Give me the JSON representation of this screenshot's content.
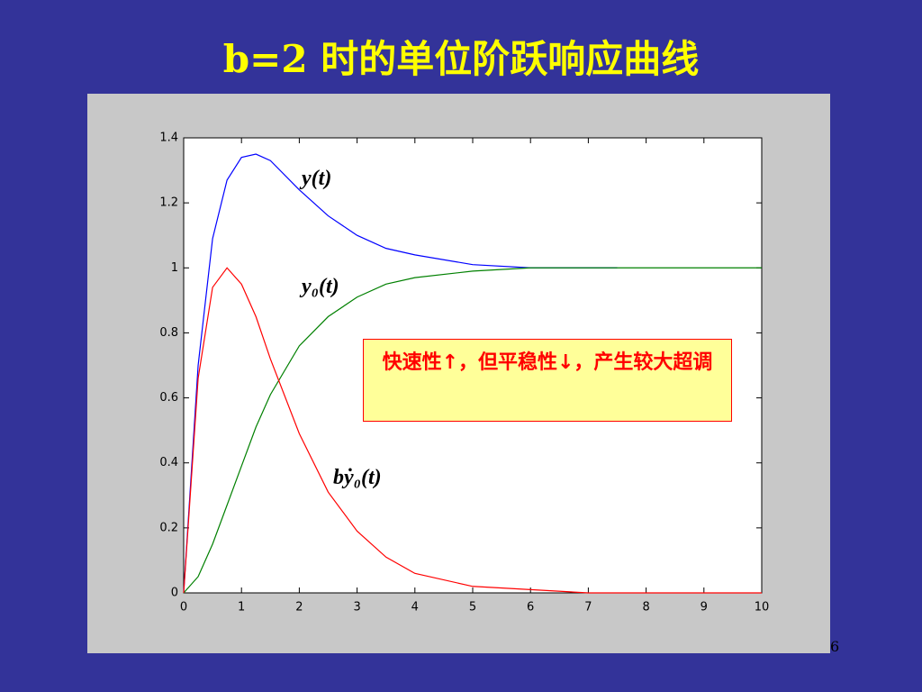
{
  "title": "b=2 时的单位阶跃响应曲线",
  "page_number": "6",
  "chart_data": {
    "type": "line",
    "x": [
      0,
      0.25,
      0.5,
      0.75,
      1,
      1.25,
      1.5,
      2,
      2.5,
      3,
      3.5,
      4,
      5,
      6,
      7,
      7.5,
      8,
      9,
      10
    ],
    "series": [
      {
        "name": "y(t)",
        "color": "#0000ff",
        "values": [
          0,
          0.7,
          1.09,
          1.27,
          1.34,
          1.35,
          1.33,
          1.24,
          1.16,
          1.1,
          1.06,
          1.04,
          1.01,
          1.0,
          1.0,
          1.0,
          null,
          null,
          null
        ]
      },
      {
        "name": "y₀(t)",
        "color": "#008000",
        "values": [
          0,
          0.05,
          0.15,
          0.27,
          0.39,
          0.51,
          0.61,
          0.76,
          0.85,
          0.91,
          0.95,
          0.97,
          0.99,
          1.0,
          1.0,
          1.0,
          1.0,
          1.0,
          1.0
        ]
      },
      {
        "name": "bẏ₀(t)",
        "color": "#ff0000",
        "values": [
          0,
          0.66,
          0.94,
          1.0,
          0.95,
          0.85,
          0.72,
          0.49,
          0.31,
          0.19,
          0.11,
          0.06,
          0.02,
          0.01,
          0,
          0,
          0,
          0,
          0
        ]
      }
    ],
    "xlim": [
      0,
      10
    ],
    "ylim": [
      0,
      1.4
    ],
    "xticks": [
      0,
      1,
      2,
      3,
      4,
      5,
      6,
      7,
      8,
      9,
      10
    ],
    "yticks": [
      0,
      0.2,
      0.4,
      0.6,
      0.8,
      1,
      1.2,
      1.4
    ],
    "grid": false,
    "note": "快速性↑，但平稳性↓，产生较大超调"
  }
}
